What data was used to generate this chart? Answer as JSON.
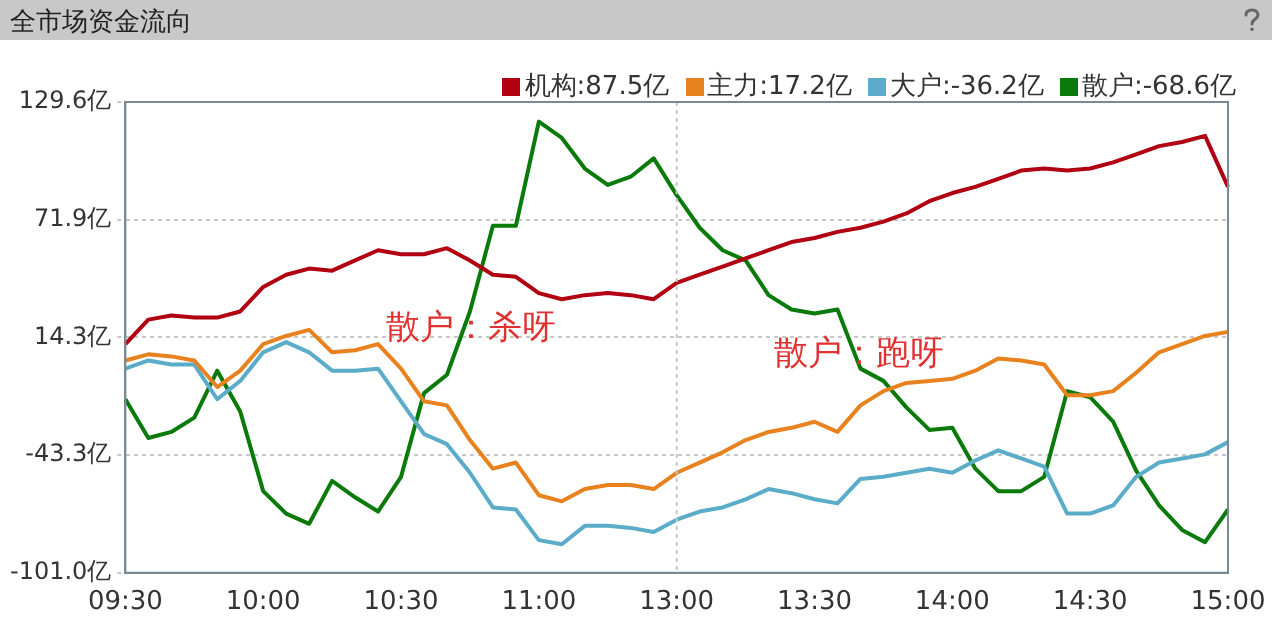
{
  "chart_data": {
    "type": "line",
    "title": "全市场资金流向",
    "categories": [
      "09:30",
      null,
      null,
      null,
      null,
      null,
      "10:00",
      null,
      null,
      null,
      null,
      null,
      "10:30",
      null,
      null,
      null,
      null,
      null,
      "11:00",
      null,
      null,
      null,
      null,
      null,
      "13:00",
      null,
      null,
      null,
      null,
      null,
      "13:30",
      null,
      null,
      null,
      null,
      null,
      "14:00",
      null,
      null,
      null,
      null,
      null,
      "14:30",
      null,
      null,
      null,
      null,
      null,
      "15:00"
    ],
    "ylim": [
      -101.0,
      129.6
    ],
    "yticks": [
      {
        "value": 129.6,
        "label": "129.6亿"
      },
      {
        "value": 71.9,
        "label": "71.9亿"
      },
      {
        "value": 14.3,
        "label": "14.3亿"
      },
      {
        "value": -43.3,
        "label": "-43.3亿"
      },
      {
        "value": -101.0,
        "label": "-101.0亿"
      }
    ],
    "grid": "y",
    "legend": "top right",
    "marker": "none",
    "line_style": "solid",
    "ref_lines": [
      {
        "axis": "x",
        "value": "13:00",
        "color": "#c8c8c8",
        "line_style": "dotted"
      }
    ],
    "annotations": [
      "散户：杀呀",
      "散户：跑呀"
    ],
    "series": [
      {
        "name": "机构:87.5亿",
        "color": "#b00012",
        "values": [
          11,
          23,
          25,
          24,
          24,
          27,
          39,
          45,
          48,
          47,
          52,
          57,
          55,
          55,
          58,
          52,
          45,
          44,
          36,
          33,
          35,
          36,
          35,
          33,
          41,
          45,
          49,
          53,
          57,
          61,
          63,
          66,
          68,
          71,
          75,
          81,
          85,
          88,
          92,
          96,
          97,
          96,
          97,
          100,
          104,
          108,
          110,
          113,
          88
        ]
      },
      {
        "name": "主力:17.2亿",
        "color": "#e8821e",
        "values": [
          3,
          6,
          5,
          3,
          -10,
          -2,
          11,
          15,
          18,
          7,
          8,
          11,
          -1,
          -17,
          -19,
          -36,
          -50,
          -47,
          -63,
          -66,
          -60,
          -58,
          -58,
          -60,
          -52,
          -47,
          -42,
          -36,
          -32,
          -30,
          -27,
          -32,
          -19,
          -12,
          -8,
          -7,
          -6,
          -2,
          4,
          3,
          1,
          -14,
          -14,
          -12,
          -3,
          7,
          11,
          15,
          17
        ]
      },
      {
        "name": "大户:-36.2亿",
        "color": "#5aacc8",
        "values": [
          -1,
          3,
          1,
          1,
          -16,
          -7,
          7,
          12,
          7,
          -2,
          -2,
          -1,
          -17,
          -33,
          -38,
          -52,
          -69,
          -70,
          -85,
          -87,
          -78,
          -78,
          -79,
          -81,
          -75,
          -71,
          -69,
          -65,
          -60,
          -62,
          -65,
          -67,
          -55,
          -54,
          -52,
          -50,
          -52,
          -46,
          -41,
          -45,
          -49,
          -72,
          -72,
          -68,
          -54,
          -47,
          -45,
          -43,
          -37
        ]
      },
      {
        "name": "散户:-68.6亿",
        "color": "#0a7a0a",
        "values": [
          -16,
          -35,
          -32,
          -25,
          -2,
          -22,
          -61,
          -72,
          -77,
          -56,
          -64,
          -71,
          -54,
          -13,
          -4,
          27,
          69,
          69,
          120,
          112,
          97,
          89,
          93,
          102,
          84,
          68,
          57,
          52,
          35,
          28,
          26,
          28,
          -1,
          -7,
          -20,
          -31,
          -30,
          -50,
          -61,
          -61,
          -54,
          -12,
          -15,
          -27,
          -51,
          -68,
          -80,
          -86,
          -70
        ]
      }
    ]
  }
}
